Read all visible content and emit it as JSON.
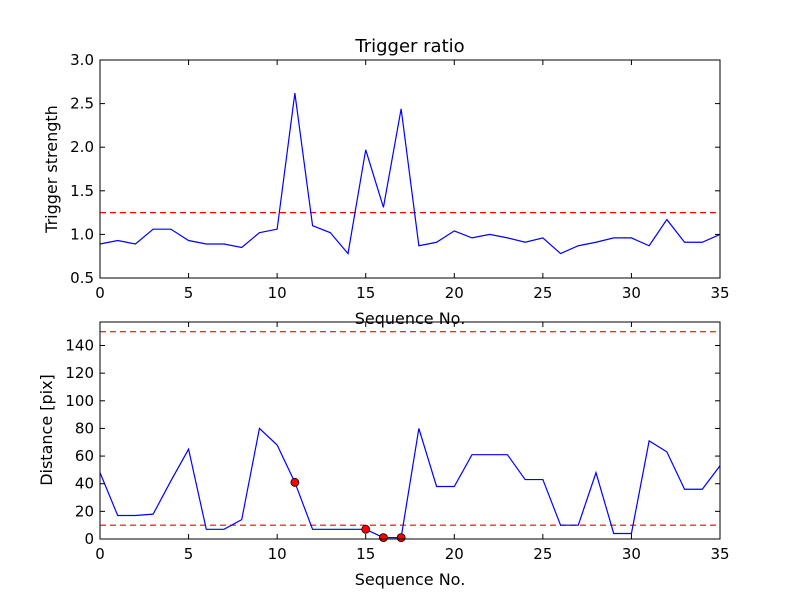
{
  "chart_data": [
    {
      "type": "line",
      "title": "Trigger ratio",
      "xlabel": "Sequence No.",
      "ylabel": "Trigger strength",
      "xlim": [
        0,
        35
      ],
      "ylim": [
        0.5,
        3.0
      ],
      "xticks": [
        "0",
        "5",
        "10",
        "15",
        "20",
        "25",
        "30",
        "35"
      ],
      "yticks": [
        "0.5",
        "1.0",
        "1.5",
        "2.0",
        "2.5",
        "3.0"
      ],
      "grid": false,
      "x": [
        0,
        1,
        2,
        3,
        4,
        5,
        6,
        7,
        8,
        9,
        10,
        11,
        12,
        13,
        14,
        15,
        16,
        17,
        18,
        19,
        20,
        21,
        22,
        23,
        24,
        25,
        26,
        27,
        28,
        29,
        30,
        31,
        32,
        33,
        34,
        35
      ],
      "series": [
        {
          "values": [
            0.89,
            0.93,
            0.89,
            1.06,
            1.06,
            0.93,
            0.89,
            0.89,
            0.85,
            1.02,
            1.06,
            2.62,
            1.1,
            1.02,
            0.78,
            1.97,
            1.31,
            2.44,
            0.87,
            0.91,
            1.04,
            0.96,
            1.0,
            0.96,
            0.91,
            0.96,
            0.78,
            0.87,
            0.91,
            0.96,
            0.96,
            0.87,
            1.17,
            0.91,
            0.91,
            1.0
          ],
          "color": "#0000ff"
        }
      ],
      "hlines": [
        {
          "y": 1.25,
          "color": "#ff0000",
          "style": "dashed"
        }
      ]
    },
    {
      "type": "line",
      "title": "",
      "xlabel": "Sequence No.",
      "ylabel": "Distance [pix]",
      "xlim": [
        0,
        35
      ],
      "ylim": [
        0,
        157
      ],
      "xticks": [
        "0",
        "5",
        "10",
        "15",
        "20",
        "25",
        "30",
        "35"
      ],
      "yticks": [
        "0",
        "20",
        "40",
        "60",
        "80",
        "100",
        "120",
        "140"
      ],
      "grid": false,
      "x": [
        0,
        1,
        2,
        3,
        4,
        5,
        6,
        7,
        8,
        9,
        10,
        11,
        12,
        13,
        14,
        15,
        16,
        17,
        18,
        19,
        20,
        21,
        22,
        23,
        24,
        25,
        26,
        27,
        28,
        29,
        30,
        31,
        32,
        33,
        34,
        35
      ],
      "series": [
        {
          "values": [
            48,
            17,
            17,
            18,
            42,
            65,
            7,
            7,
            14,
            80,
            68,
            41,
            7,
            7,
            7,
            7,
            1,
            1,
            80,
            38,
            38,
            61,
            61,
            61,
            43,
            43,
            10,
            10,
            48,
            4,
            4,
            71,
            63,
            36,
            36,
            53
          ],
          "color": "#0000ff"
        }
      ],
      "markers": {
        "x": [
          11,
          15,
          16,
          17
        ],
        "y": [
          41,
          7,
          1,
          1
        ],
        "color": "#ff0000"
      },
      "hlines": [
        {
          "y": 150,
          "color": "#ff0000",
          "style": "dashed"
        },
        {
          "y": 10,
          "color": "#ff0000",
          "style": "dashed"
        }
      ]
    }
  ]
}
